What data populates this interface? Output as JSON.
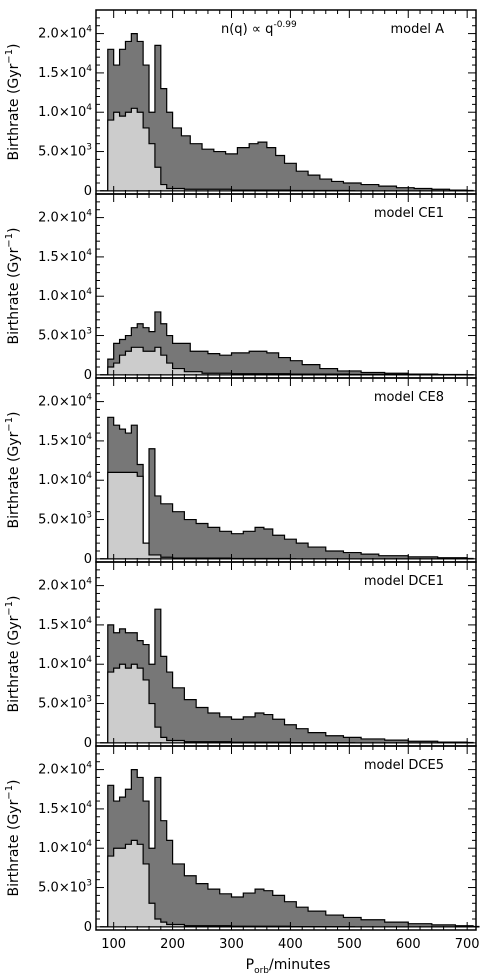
{
  "chart_data": {
    "type": "area",
    "xlabel": "P_orb/minutes",
    "ylabel": "Birthrate (Gyr^-1)",
    "xlim": [
      70,
      715
    ],
    "ylim": [
      -400,
      23000
    ],
    "xticks": [
      100,
      200,
      300,
      400,
      500,
      600,
      700
    ],
    "yticks": [
      {
        "value": 0,
        "label": "0"
      },
      {
        "value": 5000,
        "label": "5.0×10",
        "exp": "3"
      },
      {
        "value": 10000,
        "label": "1.0×10",
        "exp": "4"
      },
      {
        "value": 15000,
        "label": "1.5×10",
        "exp": "4"
      },
      {
        "value": 20000,
        "label": "2.0×10",
        "exp": "4"
      }
    ],
    "colors": {
      "total": "#777777",
      "sub": "#cccccc",
      "edge": "#000000"
    },
    "panels": [
      {
        "label": "model A",
        "annotation": "n(q) ∝ q",
        "annotation_exp": "-0.99",
        "total": [
          [
            78,
            2
          ],
          [
            90,
            18000
          ],
          [
            100,
            16000
          ],
          [
            110,
            18000
          ],
          [
            120,
            19000
          ],
          [
            130,
            20000
          ],
          [
            140,
            19000
          ],
          [
            150,
            16000
          ],
          [
            160,
            10000
          ],
          [
            170,
            18500
          ],
          [
            180,
            13000
          ],
          [
            190,
            10000
          ],
          [
            200,
            8000
          ],
          [
            215,
            7000
          ],
          [
            230,
            6000
          ],
          [
            250,
            5300
          ],
          [
            270,
            5000
          ],
          [
            290,
            4700
          ],
          [
            310,
            5500
          ],
          [
            330,
            6000
          ],
          [
            345,
            6200
          ],
          [
            360,
            5500
          ],
          [
            375,
            4500
          ],
          [
            390,
            3500
          ],
          [
            410,
            2500
          ],
          [
            430,
            2000
          ],
          [
            450,
            1500
          ],
          [
            470,
            1200
          ],
          [
            490,
            1000
          ],
          [
            520,
            800
          ],
          [
            550,
            600
          ],
          [
            580,
            400
          ],
          [
            610,
            300
          ],
          [
            640,
            200
          ],
          [
            670,
            100
          ],
          [
            700,
            50
          ]
        ],
        "sub": [
          [
            78,
            2
          ],
          [
            90,
            9000
          ],
          [
            100,
            10000
          ],
          [
            110,
            9500
          ],
          [
            120,
            10000
          ],
          [
            130,
            10500
          ],
          [
            140,
            10000
          ],
          [
            150,
            8000
          ],
          [
            160,
            6000
          ],
          [
            170,
            3000
          ],
          [
            180,
            800
          ],
          [
            190,
            300
          ],
          [
            220,
            200
          ],
          [
            300,
            100
          ],
          [
            400,
            50
          ],
          [
            500,
            0
          ]
        ]
      },
      {
        "label": "model CE1",
        "total": [
          [
            78,
            2
          ],
          [
            90,
            2000
          ],
          [
            100,
            4000
          ],
          [
            110,
            4500
          ],
          [
            120,
            5000
          ],
          [
            130,
            6000
          ],
          [
            140,
            6500
          ],
          [
            150,
            6000
          ],
          [
            160,
            5500
          ],
          [
            170,
            8000
          ],
          [
            180,
            6500
          ],
          [
            190,
            5000
          ],
          [
            200,
            4000
          ],
          [
            230,
            3000
          ],
          [
            260,
            2700
          ],
          [
            280,
            2500
          ],
          [
            300,
            2800
          ],
          [
            330,
            3000
          ],
          [
            345,
            3000
          ],
          [
            360,
            2800
          ],
          [
            380,
            2200
          ],
          [
            400,
            1800
          ],
          [
            420,
            1300
          ],
          [
            450,
            800
          ],
          [
            480,
            500
          ],
          [
            520,
            300
          ],
          [
            560,
            200
          ],
          [
            600,
            100
          ],
          [
            650,
            50
          ],
          [
            700,
            20
          ]
        ],
        "sub": [
          [
            78,
            2
          ],
          [
            90,
            1000
          ],
          [
            100,
            1500
          ],
          [
            110,
            2500
          ],
          [
            120,
            3000
          ],
          [
            130,
            3500
          ],
          [
            140,
            3500
          ],
          [
            150,
            3000
          ],
          [
            160,
            3000
          ],
          [
            170,
            3500
          ],
          [
            180,
            2500
          ],
          [
            190,
            1500
          ],
          [
            200,
            800
          ],
          [
            220,
            400
          ],
          [
            250,
            200
          ],
          [
            300,
            150
          ],
          [
            400,
            100
          ],
          [
            500,
            50
          ],
          [
            600,
            0
          ]
        ]
      },
      {
        "label": "model CE8",
        "total": [
          [
            78,
            2
          ],
          [
            90,
            18000
          ],
          [
            100,
            17000
          ],
          [
            110,
            16500
          ],
          [
            120,
            16000
          ],
          [
            130,
            17000
          ],
          [
            140,
            12000
          ],
          [
            150,
            2000
          ],
          [
            160,
            14000
          ],
          [
            170,
            8000
          ],
          [
            180,
            7000
          ],
          [
            200,
            6000
          ],
          [
            220,
            5000
          ],
          [
            240,
            4500
          ],
          [
            260,
            4000
          ],
          [
            280,
            3500
          ],
          [
            300,
            3200
          ],
          [
            320,
            3500
          ],
          [
            340,
            4000
          ],
          [
            355,
            3800
          ],
          [
            370,
            3000
          ],
          [
            390,
            2500
          ],
          [
            410,
            2000
          ],
          [
            430,
            1500
          ],
          [
            460,
            1000
          ],
          [
            490,
            800
          ],
          [
            520,
            600
          ],
          [
            550,
            400
          ],
          [
            600,
            250
          ],
          [
            650,
            150
          ],
          [
            700,
            50
          ]
        ],
        "sub": [
          [
            78,
            2
          ],
          [
            90,
            11000
          ],
          [
            100,
            11000
          ],
          [
            110,
            11000
          ],
          [
            120,
            11000
          ],
          [
            130,
            11000
          ],
          [
            140,
            10500
          ],
          [
            150,
            2000
          ],
          [
            160,
            500
          ],
          [
            180,
            200
          ],
          [
            200,
            100
          ],
          [
            300,
            50
          ],
          [
            400,
            0
          ]
        ]
      },
      {
        "label": "model DCE1",
        "total": [
          [
            78,
            2
          ],
          [
            90,
            15000
          ],
          [
            100,
            14000
          ],
          [
            110,
            14500
          ],
          [
            120,
            14000
          ],
          [
            130,
            14000
          ],
          [
            140,
            13000
          ],
          [
            150,
            12500
          ],
          [
            160,
            10000
          ],
          [
            170,
            17000
          ],
          [
            180,
            11000
          ],
          [
            190,
            9000
          ],
          [
            200,
            7000
          ],
          [
            220,
            5500
          ],
          [
            240,
            4500
          ],
          [
            260,
            3800
          ],
          [
            280,
            3300
          ],
          [
            300,
            3000
          ],
          [
            320,
            3300
          ],
          [
            340,
            3800
          ],
          [
            355,
            3600
          ],
          [
            370,
            3000
          ],
          [
            390,
            2300
          ],
          [
            410,
            1800
          ],
          [
            430,
            1300
          ],
          [
            460,
            900
          ],
          [
            490,
            700
          ],
          [
            520,
            500
          ],
          [
            560,
            350
          ],
          [
            600,
            200
          ],
          [
            650,
            100
          ],
          [
            700,
            50
          ]
        ],
        "sub": [
          [
            78,
            2
          ],
          [
            90,
            9000
          ],
          [
            100,
            9500
          ],
          [
            110,
            10000
          ],
          [
            120,
            9500
          ],
          [
            130,
            10000
          ],
          [
            140,
            9500
          ],
          [
            150,
            8000
          ],
          [
            160,
            5000
          ],
          [
            170,
            2000
          ],
          [
            180,
            700
          ],
          [
            190,
            300
          ],
          [
            220,
            150
          ],
          [
            300,
            80
          ],
          [
            400,
            40
          ],
          [
            500,
            0
          ]
        ]
      },
      {
        "label": "model DCE5",
        "total": [
          [
            78,
            2
          ],
          [
            90,
            18000
          ],
          [
            100,
            16000
          ],
          [
            110,
            16500
          ],
          [
            120,
            17500
          ],
          [
            130,
            20000
          ],
          [
            140,
            19000
          ],
          [
            150,
            16000
          ],
          [
            160,
            10000
          ],
          [
            170,
            19000
          ],
          [
            180,
            13500
          ],
          [
            190,
            11000
          ],
          [
            200,
            8000
          ],
          [
            220,
            6500
          ],
          [
            240,
            5500
          ],
          [
            260,
            4800
          ],
          [
            280,
            4200
          ],
          [
            300,
            3800
          ],
          [
            320,
            4300
          ],
          [
            340,
            4800
          ],
          [
            355,
            4600
          ],
          [
            370,
            4000
          ],
          [
            390,
            3200
          ],
          [
            410,
            2500
          ],
          [
            430,
            2000
          ],
          [
            460,
            1500
          ],
          [
            490,
            1200
          ],
          [
            520,
            900
          ],
          [
            560,
            600
          ],
          [
            600,
            400
          ],
          [
            640,
            250
          ],
          [
            680,
            150
          ],
          [
            710,
            50
          ]
        ],
        "sub": [
          [
            78,
            2
          ],
          [
            90,
            9000
          ],
          [
            100,
            10000
          ],
          [
            110,
            10000
          ],
          [
            120,
            10500
          ],
          [
            130,
            11000
          ],
          [
            140,
            10500
          ],
          [
            150,
            8000
          ],
          [
            160,
            3000
          ],
          [
            170,
            1000
          ],
          [
            180,
            600
          ],
          [
            190,
            300
          ],
          [
            220,
            150
          ],
          [
            300,
            80
          ],
          [
            400,
            40
          ],
          [
            500,
            0
          ]
        ]
      }
    ]
  }
}
